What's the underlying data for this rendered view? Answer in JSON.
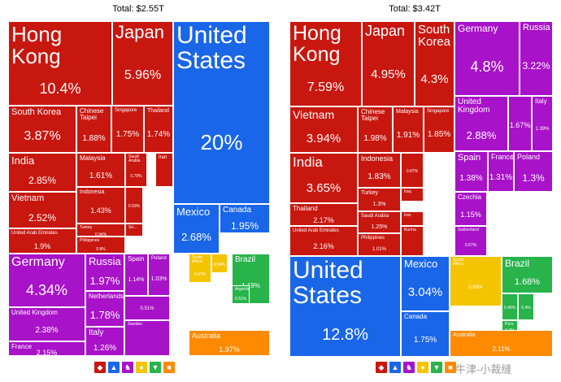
{
  "colors": {
    "asia": "#c8170f",
    "north_america": "#1a66e8",
    "europe": "#a812c8",
    "africa": "#f5c400",
    "south_america": "#28b34b",
    "oceania": "#ff8a00",
    "line": "#ffffff"
  },
  "watermark": "牛津-小裁缝",
  "legend_icons": [
    {
      "name": "asia-icon",
      "color": "#c8170f",
      "glyph": "◆"
    },
    {
      "name": "north-america-icon",
      "color": "#1a66e8",
      "glyph": "▲"
    },
    {
      "name": "europe-icon",
      "color": "#a812c8",
      "glyph": "♞"
    },
    {
      "name": "africa-icon",
      "color": "#f5c400",
      "glyph": "●"
    },
    {
      "name": "south-america-icon",
      "color": "#28b34b",
      "glyph": "▼"
    },
    {
      "name": "oceania-icon",
      "color": "#ff8a00",
      "glyph": "■"
    }
  ],
  "chart_data": [
    {
      "type": "treemap",
      "title": "Total: $2.55T",
      "cells": [
        {
          "label": "Hong\nKong",
          "value": "10.4%",
          "region": "asia",
          "lfs": 26,
          "vfs": 18
        },
        {
          "label": "Japan",
          "value": "5.96%",
          "region": "asia",
          "lfs": 22,
          "vfs": 16
        },
        {
          "label": "United\nStates",
          "value": "20%",
          "region": "north_america",
          "lfs": 30,
          "vfs": 26
        },
        {
          "label": "South Korea",
          "value": "3.87%",
          "region": "asia",
          "lfs": 11,
          "vfs": 16
        },
        {
          "label": "Chinese\nTaipei",
          "value": "1.88%",
          "region": "asia",
          "lfs": 8,
          "vfs": 10
        },
        {
          "label": "Singapore",
          "value": "1.75%",
          "region": "asia",
          "lfs": 6,
          "vfs": 10
        },
        {
          "label": "Thailand",
          "value": "1.74%",
          "region": "asia",
          "lfs": 7,
          "vfs": 10
        },
        {
          "label": "India",
          "value": "2.85%",
          "region": "asia",
          "lfs": 13,
          "vfs": 12
        },
        {
          "label": "Malaysia",
          "value": "1.61%",
          "region": "asia",
          "lfs": 8,
          "vfs": 10
        },
        {
          "label": "Saudi\nArabia",
          "value": "0.79%",
          "region": "asia",
          "lfs": 5,
          "vfs": 5
        },
        {
          "label": "Iran",
          "value": "",
          "region": "asia",
          "lfs": 6,
          "vfs": 5
        },
        {
          "label": "Indonesia",
          "value": "1.43%",
          "region": "asia",
          "lfs": 7,
          "vfs": 9
        },
        {
          "label": "",
          "value": "0.59%",
          "region": "asia",
          "lfs": 5,
          "vfs": 5
        },
        {
          "label": "Vietnam",
          "value": "2.52%",
          "region": "asia",
          "lfs": 11,
          "vfs": 12
        },
        {
          "label": "Turkey",
          "value": "0.94%",
          "region": "asia",
          "lfs": 5,
          "vfs": 5
        },
        {
          "label": "Sri...",
          "value": "",
          "region": "asia",
          "lfs": 5,
          "vfs": 5
        },
        {
          "label": "United Arab Emirates",
          "value": "1.9%",
          "region": "asia",
          "lfs": 6,
          "vfs": 9
        },
        {
          "label": "Philippines",
          "value": "0.8%",
          "region": "asia",
          "lfs": 5,
          "vfs": 5
        },
        {
          "label": "Mexico",
          "value": "2.68%",
          "region": "north_america",
          "lfs": 13,
          "vfs": 13
        },
        {
          "label": "Canada",
          "value": "1.95%",
          "region": "north_america",
          "lfs": 10,
          "vfs": 12
        },
        {
          "label": "Germany",
          "value": "4.34%",
          "region": "europe",
          "lfs": 16,
          "vfs": 18
        },
        {
          "label": "Russia",
          "value": "1.97%",
          "region": "europe",
          "lfs": 13,
          "vfs": 13
        },
        {
          "label": "Spain",
          "value": "1.14%",
          "region": "europe",
          "lfs": 8,
          "vfs": 7
        },
        {
          "label": "Poland",
          "value": "1.03%",
          "region": "europe",
          "lfs": 6,
          "vfs": 7
        },
        {
          "label": "",
          "value": "0.51%",
          "region": "europe",
          "lfs": 5,
          "vfs": 6
        },
        {
          "label": "Netherlands",
          "value": "1.78%",
          "region": "europe",
          "lfs": 8,
          "vfs": 13
        },
        {
          "label": "United Kingdom",
          "value": "2.38%",
          "region": "europe",
          "lfs": 8,
          "vfs": 10
        },
        {
          "label": "Italy",
          "value": "1.26%",
          "region": "europe",
          "lfs": 10,
          "vfs": 10
        },
        {
          "label": "Sweden",
          "value": "",
          "region": "europe",
          "lfs": 5,
          "vfs": 5
        },
        {
          "label": "France",
          "value": "2.15%",
          "region": "europe",
          "lfs": 8,
          "vfs": 9
        },
        {
          "label": "South\nAfrica",
          "value": "0.67%",
          "region": "africa",
          "lfs": 5,
          "vfs": 5
        },
        {
          "label": "",
          "value": "0.54%",
          "region": "africa",
          "lfs": 5,
          "vfs": 5
        },
        {
          "label": "Brazil",
          "value": "1.19%",
          "region": "south_america",
          "lfs": 10,
          "vfs": 8
        },
        {
          "label": "Argentina",
          "value": "0.51%",
          "region": "south_america",
          "lfs": 5,
          "vfs": 5
        },
        {
          "label": "Australia",
          "value": "1.97%",
          "region": "oceania",
          "lfs": 9,
          "vfs": 9
        }
      ]
    },
    {
      "type": "treemap",
      "title": "Total: $3.42T",
      "cells": [
        {
          "label": "Hong\nKong",
          "value": "7.59%",
          "region": "asia",
          "lfs": 25,
          "vfs": 16
        },
        {
          "label": "Japan",
          "value": "4.95%",
          "region": "asia",
          "lfs": 18,
          "vfs": 15
        },
        {
          "label": "South\nKorea",
          "value": "4.3%",
          "region": "asia",
          "lfs": 15,
          "vfs": 15
        },
        {
          "label": "Vietnam",
          "value": "3.94%",
          "region": "asia",
          "lfs": 14,
          "vfs": 15
        },
        {
          "label": "Chinese\nTaipei",
          "value": "1.98%",
          "region": "asia",
          "lfs": 8,
          "vfs": 10
        },
        {
          "label": "Malaysia",
          "value": "1.91%",
          "region": "asia",
          "lfs": 7,
          "vfs": 10
        },
        {
          "label": "Singapore",
          "value": "1.85%",
          "region": "asia",
          "lfs": 6,
          "vfs": 10
        },
        {
          "label": "India",
          "value": "3.65%",
          "region": "asia",
          "lfs": 17,
          "vfs": 15
        },
        {
          "label": "Indonesia",
          "value": "1.83%",
          "region": "asia",
          "lfs": 9,
          "vfs": 10
        },
        {
          "label": "",
          "value": "0.87%",
          "region": "asia",
          "lfs": 5,
          "vfs": 5
        },
        {
          "label": "Turkey",
          "value": "1.3%",
          "region": "asia",
          "lfs": 7,
          "vfs": 7
        },
        {
          "label": "Iraq",
          "value": "",
          "region": "asia",
          "lfs": 5,
          "vfs": 5
        },
        {
          "label": "Thailand",
          "value": "2.17%",
          "region": "asia",
          "lfs": 8,
          "vfs": 9
        },
        {
          "label": "Saudi Arabia",
          "value": "1.25%",
          "region": "asia",
          "lfs": 6,
          "vfs": 7
        },
        {
          "label": "Iran",
          "value": "",
          "region": "asia",
          "lfs": 5,
          "vfs": 5
        },
        {
          "label": "United Arab Emirates",
          "value": "2.16%",
          "region": "asia",
          "lfs": 6,
          "vfs": 9
        },
        {
          "label": "Philippines",
          "value": "1.01%",
          "region": "asia",
          "lfs": 6,
          "vfs": 6
        },
        {
          "label": "Burma",
          "value": "",
          "region": "asia",
          "lfs": 5,
          "vfs": 5
        },
        {
          "label": "Germany",
          "value": "4.8%",
          "region": "europe",
          "lfs": 12,
          "vfs": 18
        },
        {
          "label": "Russia",
          "value": "3.22%",
          "region": "europe",
          "lfs": 11,
          "vfs": 12
        },
        {
          "label": "United\nKingdom",
          "value": "2.88%",
          "region": "europe",
          "lfs": 10,
          "vfs": 13
        },
        {
          "label": "",
          "value": "1.67%",
          "region": "europe",
          "lfs": 5,
          "vfs": 9
        },
        {
          "label": "Italy",
          "value": "1.39%",
          "region": "europe",
          "lfs": 8,
          "vfs": 6
        },
        {
          "label": "Spain",
          "value": "1.38%",
          "region": "europe",
          "lfs": 11,
          "vfs": 10
        },
        {
          "label": "France",
          "value": "1.31%",
          "region": "europe",
          "lfs": 9,
          "vfs": 10
        },
        {
          "label": "Poland",
          "value": "1.3%",
          "region": "europe",
          "lfs": 9,
          "vfs": 12
        },
        {
          "label": "Czechia",
          "value": "1.15%",
          "region": "europe",
          "lfs": 8,
          "vfs": 9
        },
        {
          "label": "Switzerland",
          "value": "0.67%",
          "region": "europe",
          "lfs": 5,
          "vfs": 5
        },
        {
          "label": "United\nStates",
          "value": "12.8%",
          "region": "north_america",
          "lfs": 30,
          "vfs": 20
        },
        {
          "label": "Mexico",
          "value": "3.04%",
          "region": "north_america",
          "lfs": 13,
          "vfs": 15
        },
        {
          "label": "Canada",
          "value": "1.75%",
          "region": "north_america",
          "lfs": 8,
          "vfs": 10
        },
        {
          "label": "South\nAfrica",
          "value": "0.65%",
          "region": "africa",
          "lfs": 5,
          "vfs": 6
        },
        {
          "label": "Brazil",
          "value": "1.68%",
          "region": "south_america",
          "lfs": 12,
          "vfs": 11
        },
        {
          "label": "",
          "value": "0.45%",
          "region": "south_america",
          "lfs": 5,
          "vfs": 5
        },
        {
          "label": "",
          "value": "0.4%",
          "region": "south_america",
          "lfs": 5,
          "vfs": 5
        },
        {
          "label": "Peru",
          "value": "0.4%",
          "region": "south_america",
          "lfs": 5,
          "vfs": 5
        },
        {
          "label": "Australia",
          "value": "2.11%",
          "region": "oceania",
          "lfs": 7,
          "vfs": 8
        }
      ]
    }
  ]
}
